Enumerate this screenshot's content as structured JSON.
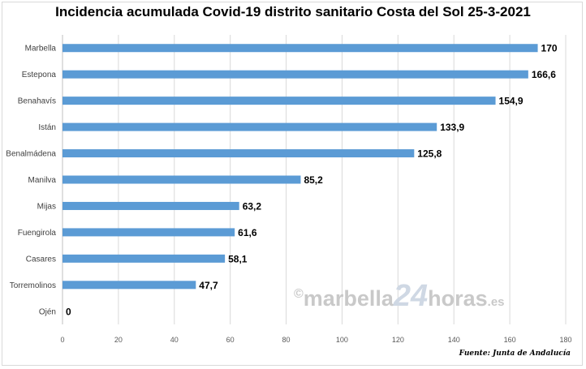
{
  "title": "Incidencia acumulada Covid-19 distrito sanitario Costa del Sol 25-3-2021",
  "source": "Fuente: Junta de Andalucía",
  "watermark": {
    "copyright": "©",
    "brand": "marbella",
    "number": "24",
    "suffix": "horas",
    "domain": ".es"
  },
  "colors": {
    "bar": "#5b9bd5",
    "grid": "#d9d9d9",
    "axis": "#bfbfbf",
    "watermark": "#c9c9c9"
  },
  "chart_data": {
    "type": "bar",
    "orientation": "horizontal",
    "title": "Incidencia acumulada Covid-19 distrito sanitario Costa del Sol 25-3-2021",
    "categories": [
      "Marbella",
      "Estepona",
      "Benahavís",
      "Istán",
      "Benalmádena",
      "Manilva",
      "Mijas",
      "Fuengirola",
      "Casares",
      "Torremolinos",
      "Ojén"
    ],
    "values": [
      170,
      166.6,
      154.9,
      133.9,
      125.8,
      85.2,
      63.2,
      61.6,
      58.1,
      47.7,
      0
    ],
    "value_labels": [
      "170",
      "166,6",
      "154,9",
      "133,9",
      "125,8",
      "85,2",
      "63,2",
      "61,6",
      "58,1",
      "47,7",
      "0"
    ],
    "xlim": [
      0,
      180
    ],
    "x_ticks": [
      0,
      20,
      40,
      60,
      80,
      100,
      120,
      140,
      160,
      180
    ],
    "x_tick_labels": [
      "0",
      "20",
      "40",
      "60",
      "80",
      "100",
      "120",
      "140",
      "160",
      "180"
    ],
    "grid": true,
    "legend": "none",
    "xlabel": "",
    "ylabel": ""
  }
}
